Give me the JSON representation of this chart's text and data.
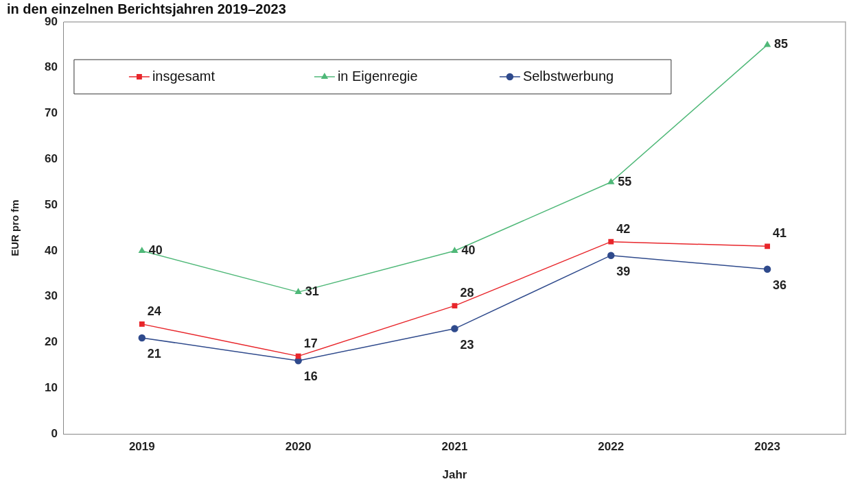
{
  "chart_data": {
    "type": "line",
    "title": "in den einzelnen Berichtsjahren 2019–2023",
    "xlabel": "Jahr",
    "ylabel": "EUR pro fm",
    "categories": [
      "2019",
      "2020",
      "2021",
      "2022",
      "2023"
    ],
    "series": [
      {
        "name": "insgesamt",
        "color": "#e8262b",
        "marker": "square",
        "values": [
          24,
          17,
          28,
          42,
          41
        ]
      },
      {
        "name": "in Eigenregie",
        "color": "#4fb878",
        "marker": "triangle",
        "values": [
          40,
          31,
          40,
          55,
          85
        ]
      },
      {
        "name": "Selbstwerbung",
        "color": "#2f4a8c",
        "marker": "circle",
        "values": [
          21,
          16,
          23,
          39,
          36
        ]
      }
    ],
    "ylim": [
      0,
      90
    ],
    "yticks": [
      0,
      10,
      20,
      30,
      40,
      50,
      60,
      70,
      80,
      90
    ],
    "grid": false,
    "legend": "top left",
    "data_labels": true
  }
}
